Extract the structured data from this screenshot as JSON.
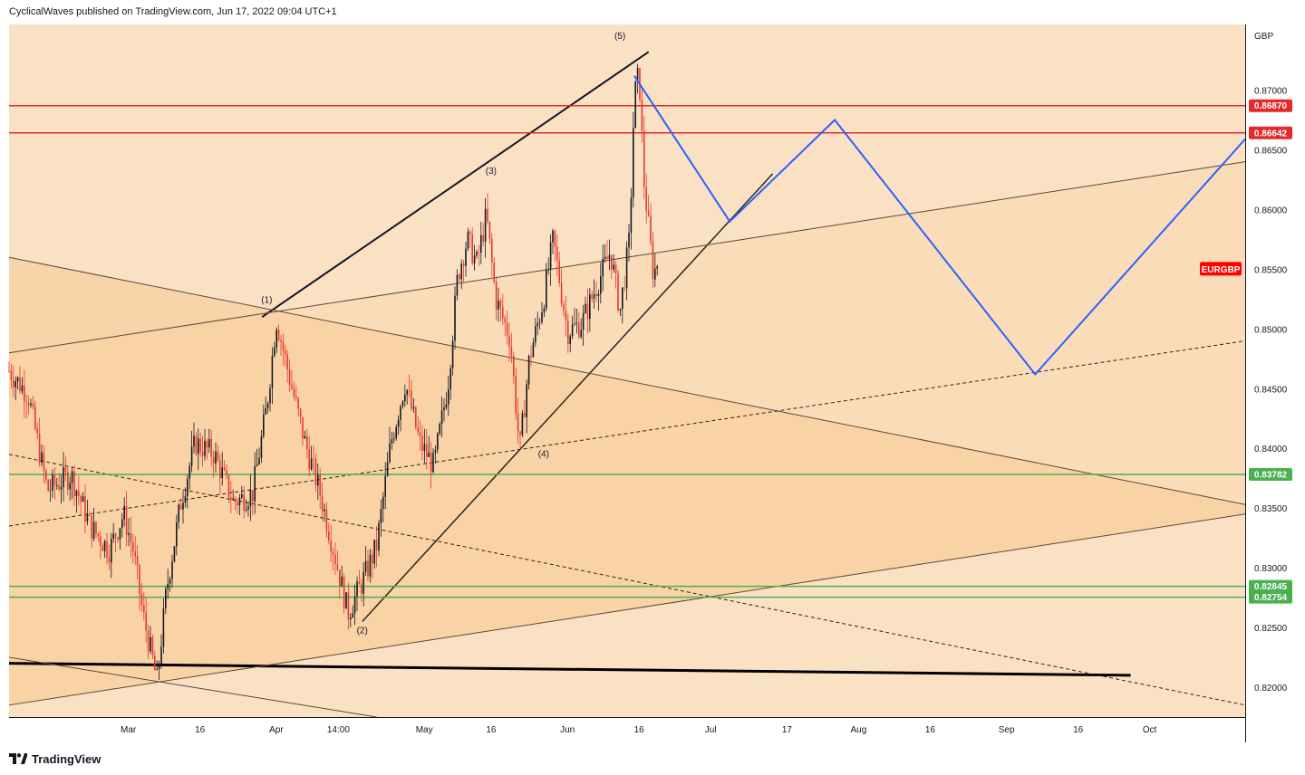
{
  "header": {
    "text": "CyclicalWaves published on TradingView.com, Jun 17, 2022 09:04 UTC+1"
  },
  "footer": {
    "brand": "TradingView",
    "logo_icon": "tradingview-logo-icon"
  },
  "colors": {
    "bg": "#fbe1c4",
    "band_upper": "#fbdcb8",
    "band_lower": "#f8cf9e",
    "bull": "#131722",
    "bear": "#e8382f",
    "resistance": "#e32b2b",
    "support": "#4caf50",
    "projection": "#2962ff",
    "price_tag": "#ff0000"
  },
  "chart_data": {
    "type": "candlestick",
    "symbol": "EURGBP",
    "currency": "GBP",
    "ylim": [
      0.8175,
      0.8755
    ],
    "xlim": [
      "2022-02-04",
      "2022-10-21"
    ],
    "y_ticks": [
      "0.87000",
      "0.86500",
      "0.86000",
      "0.85500",
      "0.85000",
      "0.84500",
      "0.84000",
      "0.83500",
      "0.83000",
      "0.82500",
      "0.82000"
    ],
    "x_ticks": [
      {
        "label": "Mar",
        "date": "2022-03-01"
      },
      {
        "label": "16",
        "date": "2022-03-16"
      },
      {
        "label": "Apr",
        "date": "2022-04-01"
      },
      {
        "label": "14:00",
        "date": "2022-04-14"
      },
      {
        "label": "May",
        "date": "2022-05-02"
      },
      {
        "label": "16",
        "date": "2022-05-16"
      },
      {
        "label": "Jun",
        "date": "2022-06-01"
      },
      {
        "label": "16",
        "date": "2022-06-16"
      },
      {
        "label": "Jul",
        "date": "2022-07-01"
      },
      {
        "label": "17",
        "date": "2022-07-17"
      },
      {
        "label": "Aug",
        "date": "2022-08-01"
      },
      {
        "label": "16",
        "date": "2022-08-16"
      },
      {
        "label": "Sep",
        "date": "2022-09-01"
      },
      {
        "label": "16",
        "date": "2022-09-16"
      },
      {
        "label": "Oct",
        "date": "2022-10-01"
      }
    ],
    "price_path": [
      [
        "2022-02-04",
        0.8465
      ],
      [
        "2022-02-08",
        0.8445
      ],
      [
        "2022-02-12",
        0.8365
      ],
      [
        "2022-02-17",
        0.8378
      ],
      [
        "2022-02-21",
        0.8335
      ],
      [
        "2022-02-25",
        0.8315
      ],
      [
        "2022-02-28",
        0.8345
      ],
      [
        "2022-03-02",
        0.8315
      ],
      [
        "2022-03-04",
        0.8262
      ],
      [
        "2022-03-07",
        0.8205
      ],
      [
        "2022-03-09",
        0.8282
      ],
      [
        "2022-03-12",
        0.8355
      ],
      [
        "2022-03-15",
        0.8405
      ],
      [
        "2022-03-19",
        0.8395
      ],
      [
        "2022-03-23",
        0.8355
      ],
      [
        "2022-03-27",
        0.8362
      ],
      [
        "2022-03-30",
        0.8435
      ],
      [
        "2022-04-01",
        0.8508
      ],
      [
        "2022-04-04",
        0.8455
      ],
      [
        "2022-04-07",
        0.8405
      ],
      [
        "2022-04-10",
        0.8365
      ],
      [
        "2022-04-13",
        0.8315
      ],
      [
        "2022-04-16",
        0.8262
      ],
      [
        "2022-04-19",
        0.8288
      ],
      [
        "2022-04-22",
        0.8318
      ],
      [
        "2022-04-25",
        0.8405
      ],
      [
        "2022-04-28",
        0.8455
      ],
      [
        "2022-05-01",
        0.8405
      ],
      [
        "2022-05-04",
        0.8385
      ],
      [
        "2022-05-07",
        0.8455
      ],
      [
        "2022-05-09",
        0.8545
      ],
      [
        "2022-05-11",
        0.8575
      ],
      [
        "2022-05-13",
        0.8555
      ],
      [
        "2022-05-15",
        0.8595
      ],
      [
        "2022-05-17",
        0.8525
      ],
      [
        "2022-05-20",
        0.8492
      ],
      [
        "2022-05-22",
        0.8398
      ],
      [
        "2022-05-24",
        0.8475
      ],
      [
        "2022-05-27",
        0.8525
      ],
      [
        "2022-05-29",
        0.8575
      ],
      [
        "2022-06-01",
        0.8498
      ],
      [
        "2022-06-04",
        0.8505
      ],
      [
        "2022-06-07",
        0.8535
      ],
      [
        "2022-06-10",
        0.8565
      ],
      [
        "2022-06-12",
        0.8515
      ],
      [
        "2022-06-14",
        0.8575
      ],
      [
        "2022-06-15",
        0.8695
      ],
      [
        "2022-06-16",
        0.8715
      ],
      [
        "2022-06-17",
        0.8625
      ],
      [
        "2022-06-19",
        0.8545
      ],
      [
        "2022-06-20",
        0.8558
      ]
    ],
    "waves": [
      {
        "label": "(1)",
        "date": "2022-03-30",
        "price": 0.8522
      },
      {
        "label": "(2)",
        "date": "2022-04-19",
        "price": 0.8245
      },
      {
        "label": "(3)",
        "date": "2022-05-16",
        "price": 0.863
      },
      {
        "label": "(4)",
        "date": "2022-05-27",
        "price": 0.8393
      },
      {
        "label": "(5)",
        "date": "2022-06-12",
        "price": 0.8743
      }
    ],
    "horizontal_levels": [
      {
        "price": 0.8687,
        "label": "0.86870",
        "kind": "resistance"
      },
      {
        "price": 0.86642,
        "label": "0.86642",
        "kind": "resistance"
      },
      {
        "price": 0.83782,
        "label": "0.83782",
        "kind": "support"
      },
      {
        "price": 0.82845,
        "label": "0.82845",
        "kind": "support"
      },
      {
        "price": 0.82754,
        "label": "0.82754",
        "kind": "support"
      }
    ],
    "symbol_tag": {
      "label": "EURGBP",
      "price": 0.855
    },
    "trend_lines": [
      {
        "name": "upper-impulse-line",
        "style": "bold",
        "from": [
          "2022-03-29",
          0.851
        ],
        "to": [
          "2022-06-18",
          0.8732
        ]
      },
      {
        "name": "lower-impulse-line",
        "style": "solid",
        "from": [
          "2022-04-19",
          0.8255
        ],
        "to": [
          "2022-07-14",
          0.863
        ]
      },
      {
        "name": "major-support-line",
        "style": "heavy",
        "from": [
          "2022-02-04",
          0.822
        ],
        "to": [
          "2022-09-27",
          0.821
        ]
      },
      {
        "name": "channel-top-line",
        "style": "thin",
        "from": [
          "2022-02-04",
          0.848
        ],
        "to": [
          "2022-10-21",
          0.864
        ]
      },
      {
        "name": "channel-bottom-line",
        "style": "thin",
        "from": [
          "2022-02-04",
          0.8185
        ],
        "to": [
          "2022-10-21",
          0.8345
        ]
      },
      {
        "name": "falling-top-line",
        "style": "thin",
        "from": [
          "2022-02-04",
          0.856
        ],
        "to": [
          "2022-10-21",
          0.8353
        ]
      },
      {
        "name": "falling-bottom-line",
        "style": "thin",
        "from": [
          "2022-02-04",
          0.8225
        ],
        "to": [
          "2022-04-22",
          0.8175
        ]
      },
      {
        "name": "rising-dashed-line",
        "style": "dashed",
        "from": [
          "2022-02-04",
          0.8335
        ],
        "to": [
          "2022-10-21",
          0.849
        ]
      },
      {
        "name": "falling-dashed-line",
        "style": "dashed",
        "from": [
          "2022-02-04",
          0.8395
        ],
        "to": [
          "2022-10-21",
          0.8185
        ]
      }
    ],
    "projection_path": [
      [
        "2022-06-15",
        0.8712
      ],
      [
        "2022-07-05",
        0.859
      ],
      [
        "2022-07-27",
        0.8675
      ],
      [
        "2022-09-07",
        0.8462
      ],
      [
        "2022-10-21",
        0.8659
      ]
    ]
  }
}
